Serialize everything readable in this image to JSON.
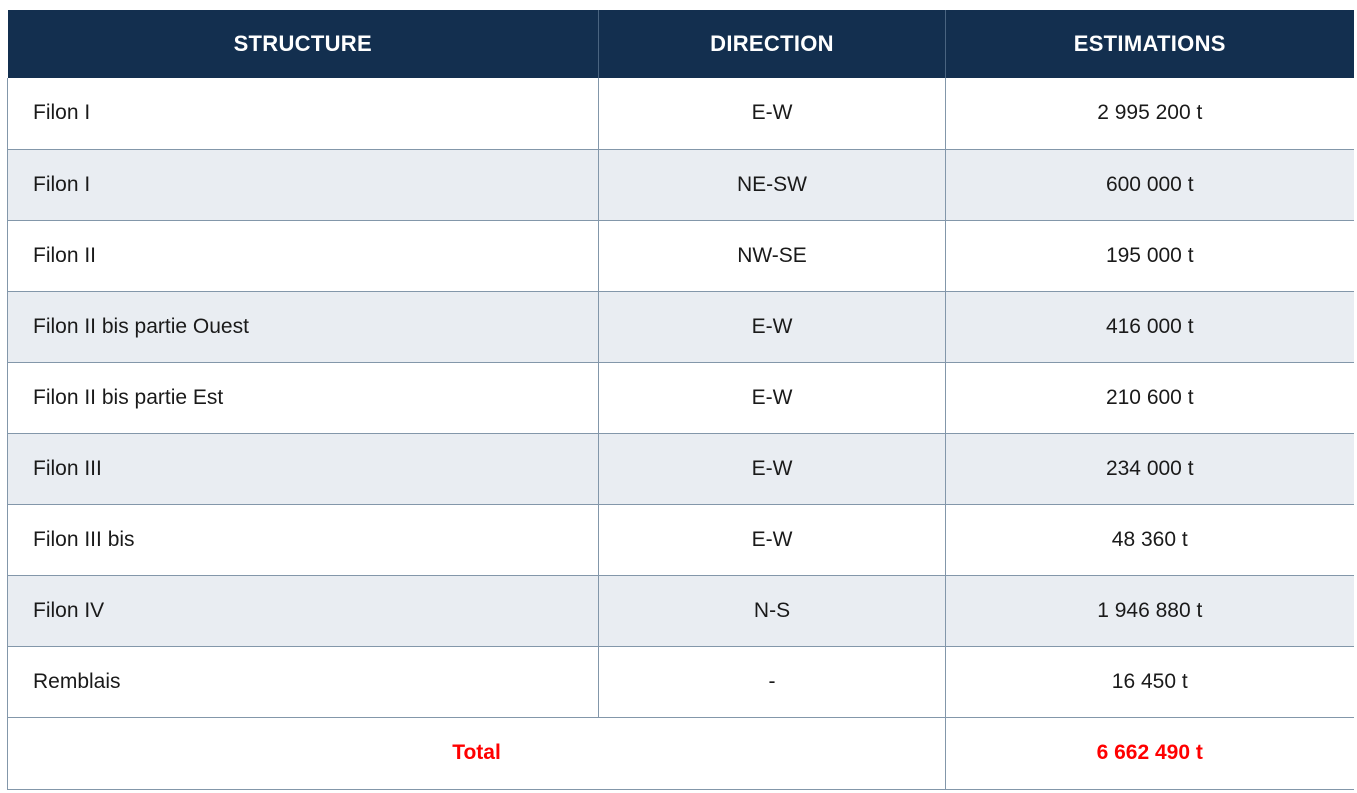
{
  "table": {
    "columns": [
      "STRUCTURE",
      "DIRECTION",
      "ESTIMATIONS"
    ],
    "rows": [
      {
        "structure": "Filon I",
        "direction": "E-W",
        "estimation": "2 995 200 t"
      },
      {
        "structure": "Filon I",
        "direction": "NE-SW",
        "estimation": "600 000 t"
      },
      {
        "structure": "Filon II",
        "direction": "NW-SE",
        "estimation": "195 000 t"
      },
      {
        "structure": "Filon II bis partie Ouest",
        "direction": "E-W",
        "estimation": "416 000 t"
      },
      {
        "structure": "Filon II bis partie Est",
        "direction": "E-W",
        "estimation": "210 600 t"
      },
      {
        "structure": "Filon III",
        "direction": "E-W",
        "estimation": "234 000 t"
      },
      {
        "structure": "Filon III bis",
        "direction": "E-W",
        "estimation": "48 360 t"
      },
      {
        "structure": "Filon IV",
        "direction": "N-S",
        "estimation": "1 946 880 t"
      },
      {
        "structure": "Remblais",
        "direction": "-",
        "estimation": "16 450 t"
      }
    ],
    "total": {
      "label": "Total",
      "value": "6 662 490 t"
    }
  },
  "colors": {
    "header_bg": "#132f4f",
    "header_text": "#ffffff",
    "header_divider": "#4a6480",
    "stripe_bg": "#e9edf2",
    "border": "#8397aa",
    "body_text": "#1a1a1a",
    "total_text": "#ff0000"
  }
}
